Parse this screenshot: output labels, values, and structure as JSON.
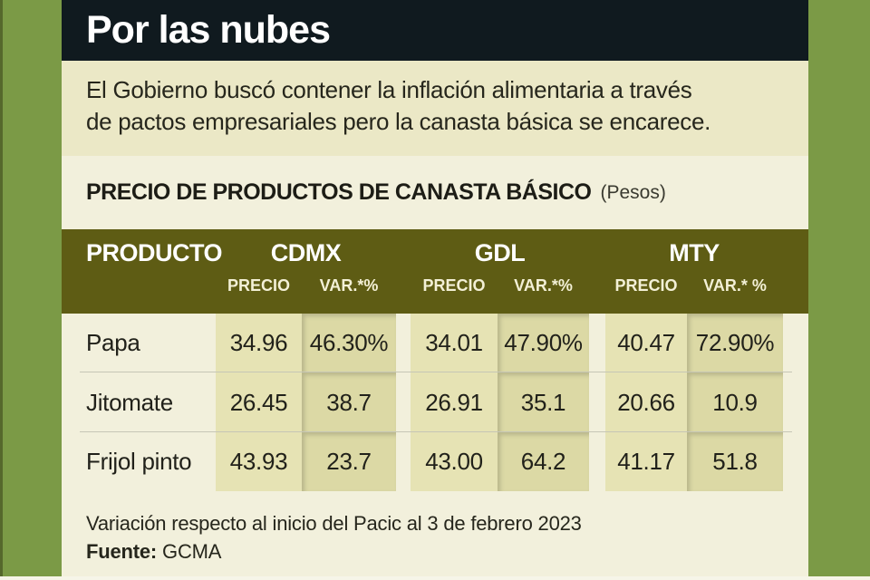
{
  "colors": {
    "frame_green": "#7b9a46",
    "title_bar_dark": "#101a1f",
    "description_bg": "#ebe8c6",
    "panel_cream": "#f2f0dc",
    "table_header_olive": "#5e5c14",
    "price_band_khaki": "#e6e3b4",
    "var_band_khaki": "#dcd9a5",
    "text_ink": "#21211a",
    "header_text": "#ffffff"
  },
  "chart_data": {
    "type": "table",
    "title": "Por las nubes",
    "subtitle_lines": [
      "El Gobierno buscó contener la inflación alimentaria a través",
      "de pactos empresariales pero la canasta básica se encarece."
    ],
    "section_title": "PRECIO DE PRODUCTOS DE CANASTA BÁSICO",
    "section_unit": "(Pesos)",
    "product_column": "PRODUCTO",
    "groups": [
      {
        "name": "CDMX",
        "price_label": "PRECIO",
        "var_label": "VAR.*%"
      },
      {
        "name": "GDL",
        "price_label": "PRECIO",
        "var_label": "VAR.*%"
      },
      {
        "name": "MTY",
        "price_label": "PRECIO",
        "var_label": "VAR.* %"
      }
    ],
    "rows": [
      [
        "Papa",
        "34.96",
        "46.30%",
        "34.01",
        "47.90%",
        "40.47",
        "72.90%"
      ],
      [
        "Jitomate",
        "26.45",
        "38.7",
        "26.91",
        "35.1",
        "20.66",
        "10.9"
      ],
      [
        "Frijol pinto",
        "43.93",
        "23.7",
        "43.00",
        "64.2",
        "41.17",
        "51.8"
      ]
    ],
    "note": "Variación respecto al inicio del Pacic al 3 de febrero 2023",
    "source_label": "Fuente:",
    "source": "GCMA"
  }
}
